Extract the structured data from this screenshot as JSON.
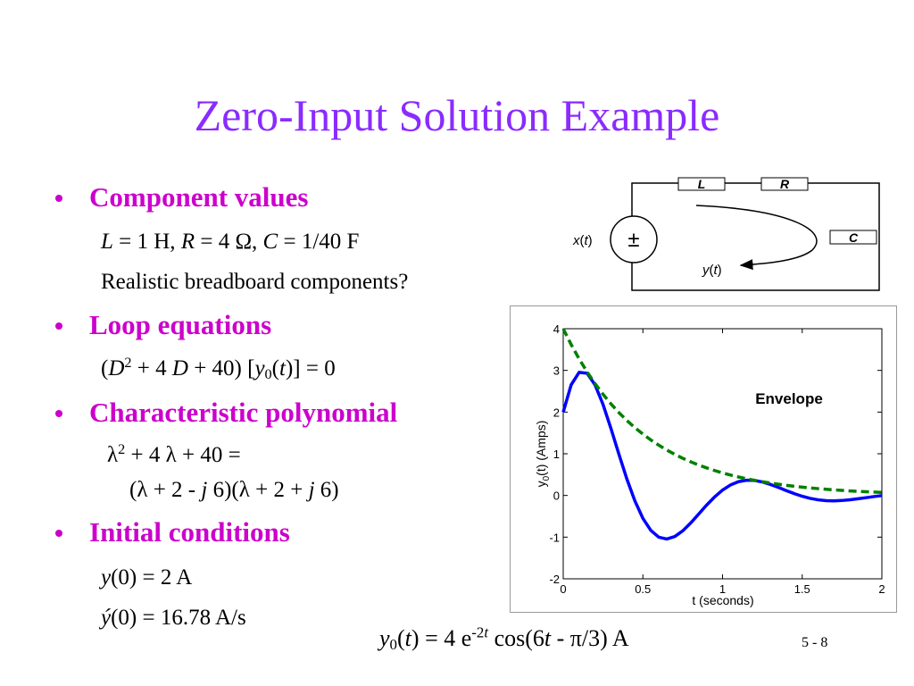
{
  "slide": {
    "title": "Zero-Input Solution Example",
    "bullets": [
      {
        "heading": "Component values",
        "lines": [
          [
            "L",
            " = 1 H, ",
            "R",
            " = 4 Ω, ",
            "C",
            " = 1/40 F"
          ],
          [
            "Realistic breadboard components?"
          ]
        ]
      },
      {
        "heading": "Loop equations",
        "lines": [
          [
            "(",
            "D",
            "2",
            " + 4 ",
            "D",
            " + 40) [",
            "y",
            "0",
            "(",
            "t",
            ")] = 0"
          ]
        ]
      },
      {
        "heading": "Characteristic polynomial",
        "lines": [
          [
            "λ",
            "2",
            " + 4 λ + 40 ="
          ],
          [
            "(λ + 2 - ",
            "j",
            " 6)(λ + 2 + ",
            "j",
            " 6)"
          ]
        ]
      },
      {
        "heading": "Initial conditions",
        "lines": [
          [
            "y",
            "(0) = 2 A"
          ],
          [
            "ý",
            "(0) = 16.78 A/s"
          ]
        ]
      }
    ],
    "equation": [
      "y",
      "0",
      "(",
      "t",
      ") = 4 e",
      "-2",
      "t",
      " cos(6",
      "t",
      " - π/3) A"
    ],
    "page_number": "5 - 8"
  },
  "circuit": {
    "inductor": "L",
    "resistor": "R",
    "capacitor": "C",
    "source": "±",
    "input": [
      "x",
      "(",
      "t",
      ")"
    ],
    "output": [
      "y",
      "(",
      "t",
      ")"
    ]
  },
  "chart_data": {
    "type": "line",
    "xlabel": "t (seconds)",
    "ylabel": [
      "y",
      "0",
      "(t) (Amps)"
    ],
    "annotation": "Envelope",
    "x": [
      0,
      0.05,
      0.1,
      0.15,
      0.2,
      0.25,
      0.3,
      0.35,
      0.4,
      0.45,
      0.5,
      0.55,
      0.6,
      0.65,
      0.7,
      0.75,
      0.8,
      0.85,
      0.9,
      0.95,
      1,
      1.05,
      1.1,
      1.15,
      1.2,
      1.25,
      1.3,
      1.35,
      1.4,
      1.45,
      1.5,
      1.55,
      1.6,
      1.65,
      1.7,
      1.75,
      1.8,
      1.85,
      1.9,
      1.95,
      2
    ],
    "series": [
      {
        "color": "#0000ff",
        "dashed": false,
        "values": [
          2,
          2.655,
          2.953,
          2.931,
          2.65,
          2.181,
          1.602,
          0.983,
          0.389,
          -0.133,
          -0.549,
          -0.839,
          -1.002,
          -1.046,
          -0.986,
          -0.85,
          -0.662,
          -0.448,
          -0.232,
          -0.036,
          0.129,
          0.252,
          0.331,
          0.365,
          0.36,
          0.323,
          0.265,
          0.193,
          0.117,
          0.044,
          -0.02,
          -0.07,
          -0.105,
          -0.124,
          -0.129,
          -0.121,
          -0.103,
          -0.08,
          -0.054,
          -0.027,
          -0.003
        ]
      },
      {
        "color": "#008000",
        "dashed": true,
        "values": [
          4,
          3.619,
          3.275,
          2.963,
          2.681,
          2.426,
          2.195,
          1.986,
          1.797,
          1.626,
          1.472,
          1.331,
          1.205,
          1.09,
          0.986,
          0.892,
          0.808,
          0.731,
          0.661,
          0.598,
          0.541,
          0.49,
          0.443,
          0.401,
          0.363,
          0.328,
          0.297,
          0.269,
          0.243,
          0.22,
          0.199,
          0.18,
          0.163,
          0.148,
          0.134,
          0.121,
          0.109,
          0.099,
          0.09,
          0.081,
          0.073
        ]
      }
    ],
    "xlim": [
      0,
      2
    ],
    "ylim": [
      -2,
      4
    ],
    "xticks": [
      0,
      0.5,
      1,
      1.5,
      2
    ],
    "yticks": [
      -2,
      -1,
      0,
      1,
      2,
      3,
      4
    ]
  }
}
